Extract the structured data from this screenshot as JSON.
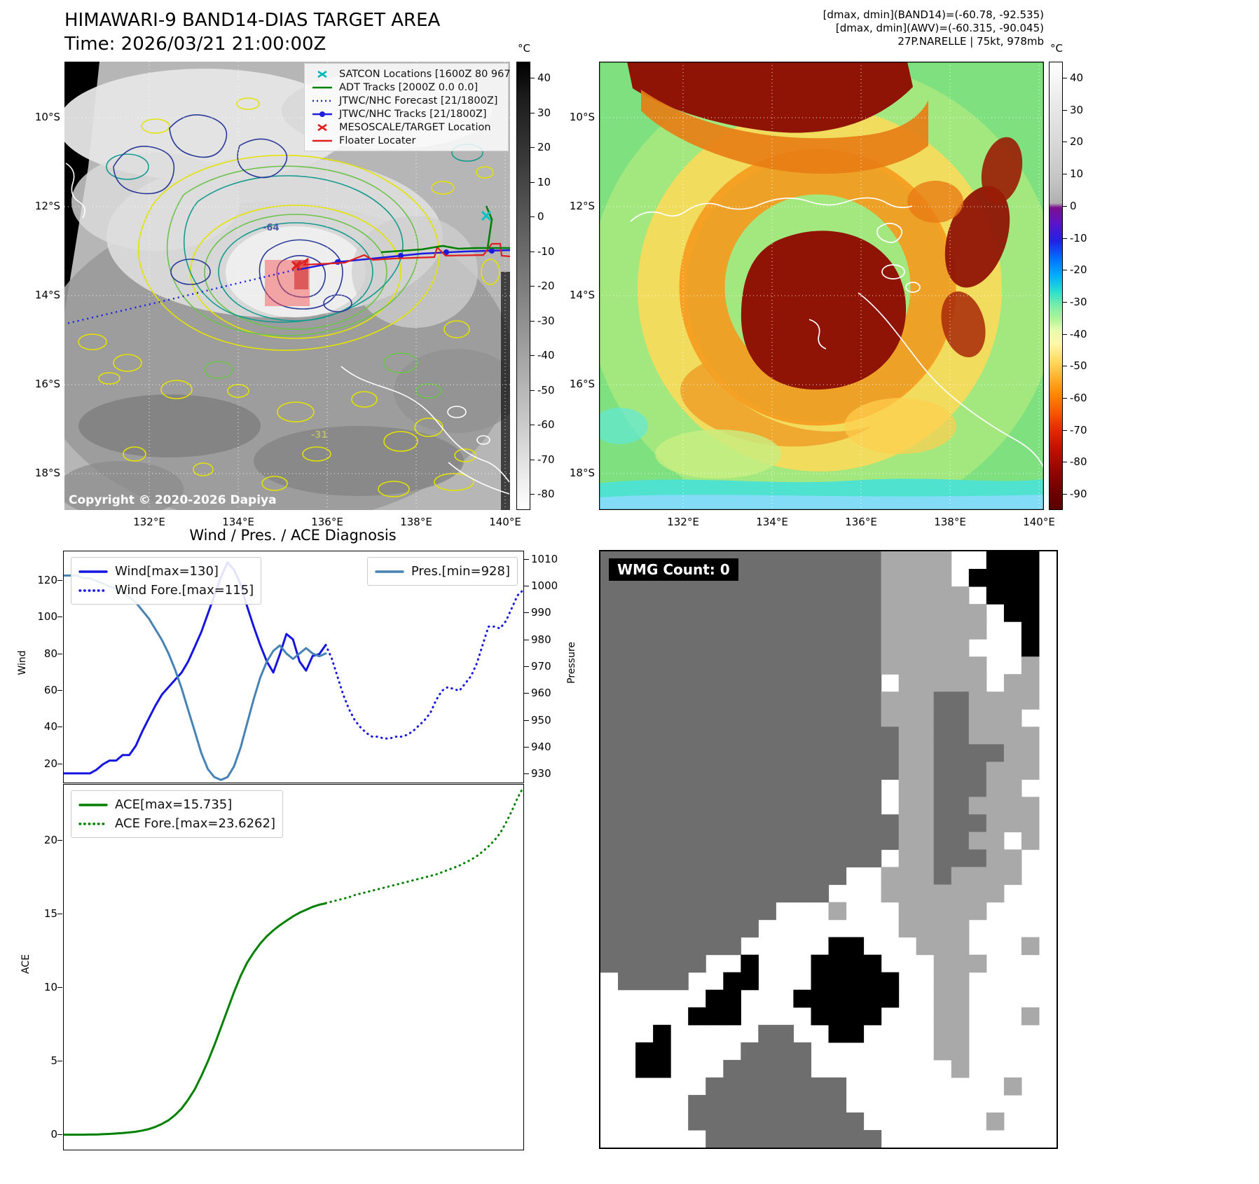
{
  "band14": {
    "title": "HIMAWARI-9 BAND14-DIAS TARGET AREA",
    "time_line": "Time: 2026/03/21 21:00:00Z",
    "legend_items": [
      {
        "label": "SATCON Locations [1600Z 80 967]",
        "marker": "x-marker",
        "color": "#00b8b8"
      },
      {
        "label": "ADT Tracks [2000Z 0.0 0.0]",
        "marker": "solid-line",
        "color": "#008000"
      },
      {
        "label": "JTWC/NHC Forecast [21/1800Z]",
        "marker": "dotted-line",
        "color": "#2121dd"
      },
      {
        "label": "JTWC/NHC Tracks [21/1800Z]",
        "marker": "line-with-dot",
        "color": "#2121dd"
      },
      {
        "label": "MESOSCALE/TARGET Location",
        "marker": "x-marker",
        "color": "#e02020"
      },
      {
        "label": "Floater Locater",
        "marker": "solid-line",
        "color": "#e02020"
      }
    ],
    "colorbar_unit": "°C",
    "colorbar_ticks": [
      40,
      30,
      20,
      10,
      0,
      -10,
      -20,
      -30,
      -40,
      -50,
      -60,
      -70,
      -80
    ],
    "lat_ticks": [
      "10°S",
      "12°S",
      "14°S",
      "16°S",
      "18°S"
    ],
    "lon_ticks": [
      "132°E",
      "134°E",
      "136°E",
      "138°E",
      "140°E"
    ],
    "copyright": "Copyright © 2020-2026 Dapiya",
    "contour_labels": [
      "-64",
      "-31"
    ]
  },
  "awv": {
    "info_lines": [
      "[dmax, dmin](BAND14)=(-60.78, -92.535)",
      "[dmax, dmin](AWV)=(-60.315, -90.045)",
      "27P.NARELLE | 75kt, 978mb"
    ],
    "colorbar_unit": "°C",
    "colorbar_ticks": [
      40,
      30,
      20,
      10,
      0,
      -10,
      -20,
      -30,
      -40,
      -50,
      -60,
      -70,
      -80,
      -90
    ],
    "lat_ticks": [
      "10°S",
      "12°S",
      "14°S",
      "16°S",
      "18°S"
    ],
    "lon_ticks": [
      "132°E",
      "134°E",
      "136°E",
      "138°E",
      "140°E"
    ]
  },
  "diagnosis_title": "Wind / Pres. / ACE Diagnosis",
  "wmg": {
    "label": "WMG Count: 0",
    "palette": {
      "d": "#6e6e6e",
      "l": "#a9a9a9",
      "w": "#ffffff",
      "b": "#000000"
    },
    "grid": [
      "ddddddddddddddddllllwwbbbw",
      "ddddddddddddddddllllwbbbbw",
      "ddddddddddddddddlllllwbbbw",
      "ddddddddddddddddllllllwbbw",
      "ddddddddddddddddllllllwwbw",
      "ddddddddddddddddlllllwwwbw",
      "ddddddddddddddddllllllwwlw",
      "ddddddddddddddddwlllllwllw",
      "ddddddddddddddddlllddllllw",
      "ddddddddddddddddlllddlllww",
      "dddddddddddddddddllddllllw",
      "dddddddddddddddddllddddllw",
      "dddddddddddddddddlldddlllw",
      "ddddddddddddddddwlldddllww",
      "ddddddddddddddddwllddllllw",
      "dddddddddddddddddlldddlllw",
      "dddddddddddddddddllddllwlw",
      "ddddddddddddddddwlldddllww",
      "ddddddddddddddwwllldllllww",
      "dddddddddddddwwwlllllllwww",
      "ddddddddddwwwlwwwlllllwwww",
      "dddddddddwwwwwwwwllllwwwww",
      "ddddddddwwwwwbbwwwlllwwwlw",
      "ddddddwwbwwwbbbbwwwlllwwww",
      "wddddwwbbwwwbbbbbwwllwwwww",
      "wwwwwwbbwwwbbbbbbwwllwwwww",
      "wwwwwbbbwwwwbbbbwwwllwwwlw",
      "wwwbwwwwwddwwbbwwwwllwwwww",
      "wwbbwwwwddddwwwwwwwllwwwww",
      "wwbbwwwdddddwwwwwwwwlwwwww",
      "wwwwwwddddddddwwwwwwwwwlww",
      "wwwwwdddddddddwwwwwwwwwwww",
      "wwwwwddddddddddwwwwwwwlwww",
      "wwwwwwddddddddddwwwwwwwwww"
    ]
  },
  "chart_data": [
    {
      "type": "line",
      "title": "Wind / Pres. / ACE Diagnosis — wind & pressure",
      "ylabel_left": "Wind",
      "ylabel_right": "Pressure",
      "yticks_left": [
        20,
        40,
        60,
        80,
        100,
        120
      ],
      "yticks_right": [
        930,
        940,
        950,
        960,
        970,
        980,
        990,
        1000,
        1010
      ],
      "ylim_left": [
        10,
        136
      ],
      "ylim_right": [
        927,
        1013
      ],
      "xlim": [
        0,
        100
      ],
      "legend": [
        {
          "label": "Wind[max=130]",
          "style": "solid",
          "color": "#1515e0",
          "box": "left"
        },
        {
          "label": "Wind Fore.[max=115]",
          "style": "dotted",
          "color": "#1515e0",
          "box": "left"
        },
        {
          "label": "Pres.[min=928]",
          "style": "solid",
          "color": "#4682b4",
          "box": "right"
        }
      ],
      "series": [
        {
          "name": "Wind",
          "axis": "left",
          "style": "solid",
          "color": "#1515e0",
          "x0": 0,
          "x1": 57,
          "values": [
            15,
            15,
            15,
            15,
            15,
            17,
            20,
            22,
            22,
            25,
            25,
            30,
            38,
            45,
            52,
            58,
            62,
            66,
            70,
            76,
            84,
            92,
            102,
            112,
            122,
            130,
            126,
            118,
            106,
            95,
            85,
            76,
            70,
            80,
            91,
            88,
            76,
            71,
            79,
            80,
            85
          ]
        },
        {
          "name": "Wind Fore.",
          "axis": "left",
          "style": "dotted",
          "color": "#1515e0",
          "x0": 57,
          "x1": 100,
          "values": [
            85,
            78,
            68,
            58,
            50,
            44,
            40,
            37,
            35,
            35,
            34,
            34,
            35,
            35,
            36,
            38,
            41,
            44,
            48,
            55,
            60,
            62,
            61,
            60,
            64,
            68,
            75,
            85,
            95,
            95,
            94,
            98,
            105,
            112,
            115
          ]
        },
        {
          "name": "Pres.",
          "axis": "right",
          "style": "solid",
          "color": "#4682b4",
          "x0": 0,
          "x1": 57,
          "values": [
            1004,
            1004,
            1004,
            1003,
            1003,
            1002,
            1001,
            1000,
            999,
            998,
            996,
            994,
            991,
            988,
            984,
            980,
            975,
            969,
            962,
            954,
            946,
            938,
            932,
            929,
            928,
            929,
            933,
            940,
            949,
            958,
            966,
            972,
            976,
            978,
            975,
            973,
            975,
            977,
            975,
            974,
            975
          ]
        }
      ]
    },
    {
      "type": "line",
      "title": "Wind / Pres. / ACE Diagnosis — accumulated cyclone energy",
      "ylabel_left": "ACE",
      "yticks_left": [
        0,
        5,
        10,
        15,
        20
      ],
      "ylim_left": [
        -1,
        23.8
      ],
      "xlim": [
        0,
        100
      ],
      "legend": [
        {
          "label": "ACE[max=15.735]",
          "style": "solid",
          "color": "#008000",
          "box": "left"
        },
        {
          "label": "ACE Fore.[max=23.6262]",
          "style": "dotted",
          "color": "#008000",
          "box": "left"
        }
      ],
      "series": [
        {
          "name": "ACE",
          "axis": "left",
          "style": "solid",
          "color": "#008000",
          "x0": 0,
          "x1": 57,
          "values": [
            0.02,
            0.02,
            0.02,
            0.02,
            0.03,
            0.03,
            0.05,
            0.07,
            0.1,
            0.13,
            0.17,
            0.22,
            0.3,
            0.4,
            0.55,
            0.75,
            1.0,
            1.35,
            1.8,
            2.4,
            3.1,
            4.0,
            5.0,
            6.1,
            7.3,
            8.5,
            9.7,
            10.8,
            11.7,
            12.4,
            13.0,
            13.5,
            13.9,
            14.25,
            14.55,
            14.85,
            15.1,
            15.3,
            15.5,
            15.64,
            15.735
          ]
        },
        {
          "name": "ACE Fore.",
          "axis": "left",
          "style": "dotted",
          "color": "#008000",
          "x0": 57,
          "x1": 100,
          "values": [
            15.75,
            15.85,
            15.95,
            16.05,
            16.15,
            16.3,
            16.4,
            16.5,
            16.6,
            16.7,
            16.8,
            16.9,
            17.0,
            17.1,
            17.2,
            17.3,
            17.4,
            17.5,
            17.6,
            17.7,
            17.85,
            18.0,
            18.15,
            18.3,
            18.5,
            18.7,
            18.95,
            19.25,
            19.6,
            20.0,
            20.5,
            21.2,
            22.0,
            22.9,
            23.6262
          ]
        }
      ]
    }
  ]
}
